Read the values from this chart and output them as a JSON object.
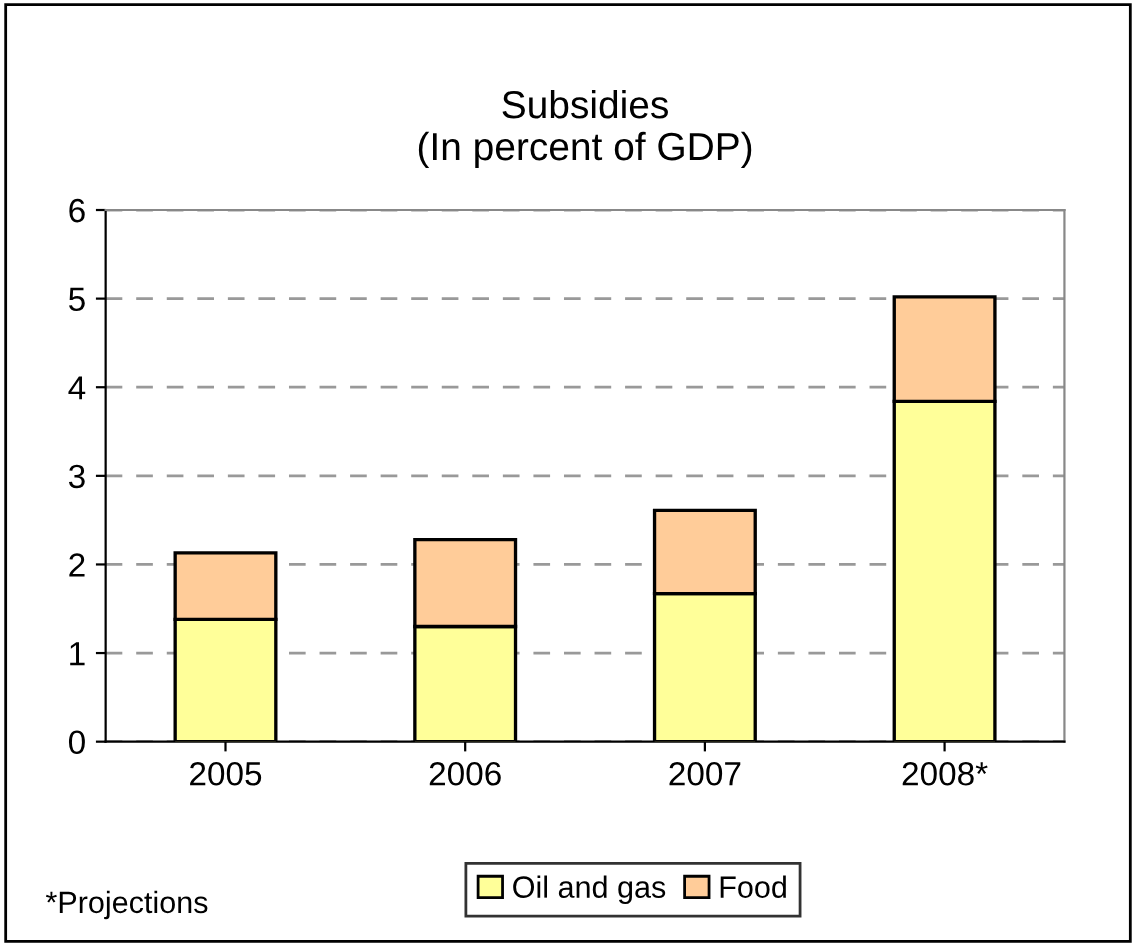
{
  "chart_data": {
    "type": "bar",
    "title": "Subsidies\n(In percent of GDP)",
    "categories": [
      "2005",
      "2006",
      "2007",
      "2008*"
    ],
    "series": [
      {
        "name": "Oil and gas",
        "color": "#ffff99",
        "values": [
          1.38,
          1.3,
          1.67,
          3.84
        ]
      },
      {
        "name": "Food",
        "color": "#ffcc99",
        "values": [
          0.75,
          0.98,
          0.94,
          1.18
        ]
      }
    ],
    "stacked": true,
    "ylim": [
      0,
      6
    ],
    "yticks": [
      0,
      1,
      2,
      3,
      4,
      5,
      6
    ],
    "grid": "y",
    "legend": "bottom",
    "annotations": [
      "*Projections"
    ]
  }
}
